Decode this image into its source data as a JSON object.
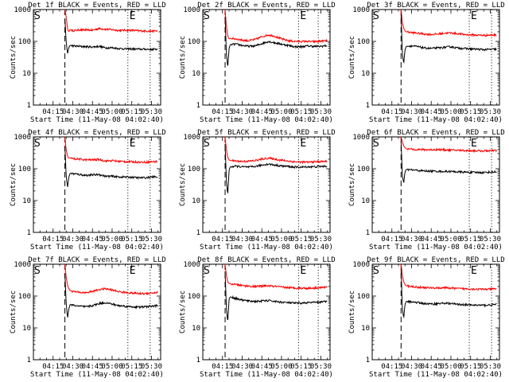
{
  "figure": {
    "shared": {
      "xlabel": "Start Time (11-May-08 04:02:40)",
      "ylabel": "Counts/sec",
      "xticks": [
        "04:15",
        "04:30",
        "04:45",
        "05:00",
        "05:15",
        "05:30"
      ],
      "yticks": [
        "1",
        "10",
        "100",
        "1000"
      ],
      "start_marker": "S",
      "end_marker": "E",
      "colors": {
        "events": "#000000",
        "lld": "#ff0000"
      }
    }
  },
  "chart_data": [
    {
      "type": "line",
      "title": "Det 1f BLACK = Events, RED = LLD",
      "xlabel": "Start Time (11-May-08 04:02:40)",
      "ylabel": "Counts/sec",
      "xlim": [
        0,
        97
      ],
      "ylim": [
        1,
        1000
      ],
      "yscale": "log",
      "dashed_line_x": 24,
      "dotted_lines_x": [
        72,
        89
      ],
      "series": [
        {
          "name": "Events",
          "color": "#000000",
          "x": [
            24,
            25,
            26,
            27,
            28,
            30,
            35,
            40,
            45,
            50,
            55,
            60,
            65,
            70,
            75,
            80,
            85,
            90,
            95
          ],
          "y": [
            500,
            100,
            40,
            65,
            75,
            72,
            70,
            68,
            67,
            70,
            63,
            63,
            60,
            58,
            58,
            57,
            57,
            56,
            57
          ]
        },
        {
          "name": "LLD",
          "color": "#ff0000",
          "x": [
            24,
            25,
            26,
            27,
            28,
            30,
            35,
            40,
            45,
            50,
            55,
            60,
            65,
            70,
            75,
            80,
            85,
            90,
            95
          ],
          "y": [
            1000,
            600,
            250,
            200,
            240,
            215,
            230,
            228,
            225,
            255,
            240,
            235,
            220,
            225,
            222,
            215,
            212,
            210,
            215
          ]
        }
      ]
    },
    {
      "type": "line",
      "title": "Det 2f BLACK = Events, RED = LLD",
      "xlabel": "Start Time (11-May-08 04:02:40)",
      "ylabel": "Counts/sec",
      "xlim": [
        0,
        97
      ],
      "ylim": [
        1,
        1000
      ],
      "yscale": "log",
      "dashed_line_x": 17,
      "dotted_lines_x": [
        73,
        88
      ],
      "series": [
        {
          "name": "Events",
          "color": "#000000",
          "x": [
            17,
            18,
            19,
            20,
            21,
            25,
            30,
            35,
            40,
            45,
            50,
            55,
            60,
            65,
            70,
            75,
            80,
            85,
            90,
            95
          ],
          "y": [
            600,
            40,
            15,
            60,
            80,
            82,
            75,
            70,
            72,
            85,
            100,
            90,
            82,
            75,
            68,
            68,
            72,
            70,
            70,
            74
          ]
        },
        {
          "name": "LLD",
          "color": "#ff0000",
          "x": [
            17,
            18,
            19,
            20,
            21,
            25,
            30,
            35,
            40,
            45,
            50,
            55,
            60,
            65,
            70,
            75,
            80,
            85,
            90,
            95
          ],
          "y": [
            1000,
            300,
            150,
            120,
            125,
            120,
            110,
            105,
            115,
            140,
            160,
            145,
            120,
            105,
            100,
            100,
            100,
            98,
            102,
            105
          ]
        }
      ]
    },
    {
      "type": "line",
      "title": "Det 3f BLACK = Events, RED = LLD",
      "xlabel": "Start Time (11-May-08 04:02:40)",
      "ylabel": "Counts/sec",
      "xlim": [
        0,
        97
      ],
      "ylim": [
        1,
        1000
      ],
      "yscale": "log",
      "dashed_line_x": 22,
      "dotted_lines_x": [
        74,
        91
      ],
      "series": [
        {
          "name": "Events",
          "color": "#000000",
          "x": [
            22,
            23,
            24,
            25,
            26,
            30,
            35,
            40,
            45,
            50,
            55,
            60,
            65,
            70,
            75,
            80,
            85,
            90,
            95
          ],
          "y": [
            700,
            40,
            20,
            55,
            70,
            72,
            68,
            62,
            60,
            62,
            65,
            68,
            62,
            60,
            58,
            57,
            55,
            56,
            57
          ]
        },
        {
          "name": "LLD",
          "color": "#ff0000",
          "x": [
            22,
            23,
            24,
            25,
            26,
            30,
            35,
            40,
            45,
            50,
            55,
            60,
            65,
            70,
            75,
            80,
            85,
            90,
            95
          ],
          "y": [
            1000,
            400,
            260,
            215,
            200,
            190,
            180,
            170,
            165,
            170,
            180,
            185,
            175,
            165,
            160,
            158,
            155,
            158,
            160
          ]
        }
      ]
    },
    {
      "type": "line",
      "title": "Det 4f BLACK = Events, RED = LLD",
      "xlabel": "Start Time (11-May-08 04:02:40)",
      "ylabel": "Counts/sec",
      "xlim": [
        0,
        97
      ],
      "ylim": [
        1,
        1000
      ],
      "yscale": "log",
      "dashed_line_x": 24,
      "dotted_lines_x": [
        72,
        89
      ],
      "series": [
        {
          "name": "Events",
          "color": "#000000",
          "x": [
            24,
            25,
            26,
            27,
            28,
            30,
            35,
            40,
            45,
            50,
            55,
            60,
            65,
            70,
            75,
            80,
            85,
            90,
            95
          ],
          "y": [
            500,
            60,
            25,
            55,
            72,
            70,
            66,
            62,
            64,
            66,
            58,
            58,
            55,
            55,
            54,
            52,
            52,
            55,
            56
          ]
        },
        {
          "name": "LLD",
          "color": "#ff0000",
          "x": [
            24,
            25,
            26,
            27,
            28,
            30,
            35,
            40,
            45,
            50,
            55,
            60,
            65,
            70,
            75,
            80,
            85,
            90,
            95
          ],
          "y": [
            1000,
            400,
            250,
            215,
            220,
            205,
            200,
            190,
            190,
            195,
            175,
            180,
            170,
            168,
            165,
            162,
            160,
            165,
            168
          ]
        }
      ]
    },
    {
      "type": "line",
      "title": "Det 5f BLACK = Events, RED = LLD",
      "xlabel": "Start Time (11-May-08 04:02:40)",
      "ylabel": "Counts/sec",
      "xlim": [
        0,
        97
      ],
      "ylim": [
        1,
        1000
      ],
      "yscale": "log",
      "dashed_line_x": 17,
      "dotted_lines_x": [
        73,
        88
      ],
      "series": [
        {
          "name": "Events",
          "color": "#000000",
          "x": [
            17,
            18,
            19,
            20,
            21,
            25,
            30,
            35,
            40,
            45,
            50,
            55,
            60,
            65,
            70,
            75,
            80,
            85,
            90,
            95
          ],
          "y": [
            600,
            40,
            15,
            90,
            115,
            120,
            115,
            112,
            118,
            130,
            140,
            130,
            122,
            118,
            112,
            112,
            115,
            115,
            118,
            120
          ]
        },
        {
          "name": "LLD",
          "color": "#ff0000",
          "x": [
            17,
            18,
            19,
            20,
            21,
            25,
            30,
            35,
            40,
            45,
            50,
            55,
            60,
            65,
            70,
            75,
            80,
            85,
            90,
            95
          ],
          "y": [
            1000,
            400,
            230,
            190,
            180,
            175,
            170,
            172,
            180,
            200,
            215,
            200,
            185,
            175,
            165,
            162,
            160,
            165,
            168,
            170
          ]
        }
      ]
    },
    {
      "type": "line",
      "title": "Det 6f BLACK = Events, RED = LLD",
      "xlabel": "Start Time (11-May-08 04:02:40)",
      "ylabel": "Counts/sec",
      "xlim": [
        0,
        97
      ],
      "ylim": [
        1,
        1000
      ],
      "yscale": "log",
      "dashed_line_x": 22,
      "dotted_lines_x": [
        74,
        91
      ],
      "series": [
        {
          "name": "Events",
          "color": "#000000",
          "x": [
            22,
            23,
            24,
            25,
            26,
            30,
            35,
            40,
            45,
            50,
            55,
            60,
            65,
            70,
            75,
            80,
            85,
            90,
            95
          ],
          "y": [
            700,
            60,
            35,
            80,
            95,
            92,
            88,
            85,
            84,
            83,
            82,
            82,
            80,
            78,
            77,
            76,
            76,
            78,
            80
          ]
        },
        {
          "name": "LLD",
          "color": "#ff0000",
          "x": [
            22,
            23,
            24,
            25,
            26,
            30,
            35,
            40,
            45,
            50,
            55,
            60,
            65,
            70,
            75,
            80,
            85,
            90,
            95
          ],
          "y": [
            1000,
            700,
            520,
            460,
            420,
            410,
            400,
            395,
            395,
            400,
            390,
            385,
            380,
            375,
            370,
            365,
            362,
            368,
            372
          ]
        }
      ]
    },
    {
      "type": "line",
      "title": "Det 7f BLACK = Events, RED = LLD",
      "xlabel": "Start Time (11-May-08 04:02:40)",
      "ylabel": "Counts/sec",
      "xlim": [
        0,
        97
      ],
      "ylim": [
        1,
        1000
      ],
      "yscale": "log",
      "dashed_line_x": 24,
      "dotted_lines_x": [
        72,
        89
      ],
      "series": [
        {
          "name": "Events",
          "color": "#000000",
          "x": [
            24,
            25,
            26,
            27,
            28,
            30,
            35,
            40,
            45,
            50,
            55,
            60,
            65,
            70,
            75,
            80,
            85,
            90,
            95
          ],
          "y": [
            500,
            60,
            20,
            40,
            55,
            52,
            48,
            46,
            50,
            58,
            62,
            56,
            50,
            48,
            46,
            45,
            46,
            48,
            50
          ]
        },
        {
          "name": "LLD",
          "color": "#ff0000",
          "x": [
            24,
            25,
            26,
            27,
            28,
            30,
            35,
            40,
            45,
            50,
            55,
            60,
            65,
            70,
            75,
            80,
            85,
            90,
            95
          ],
          "y": [
            1000,
            400,
            220,
            170,
            150,
            140,
            130,
            128,
            140,
            160,
            170,
            155,
            138,
            130,
            125,
            120,
            120,
            125,
            130
          ]
        }
      ]
    },
    {
      "type": "line",
      "title": "Det 8f BLACK = Events, RED = LLD",
      "xlabel": "Start Time (11-May-08 04:02:40)",
      "ylabel": "Counts/sec",
      "xlim": [
        0,
        97
      ],
      "ylim": [
        1,
        1000
      ],
      "yscale": "log",
      "dashed_line_x": 17,
      "dotted_lines_x": [
        73,
        88
      ],
      "series": [
        {
          "name": "Events",
          "color": "#000000",
          "x": [
            17,
            18,
            19,
            20,
            21,
            25,
            30,
            35,
            40,
            45,
            50,
            55,
            60,
            65,
            70,
            75,
            80,
            85,
            90,
            95
          ],
          "y": [
            600,
            40,
            15,
            80,
            95,
            85,
            75,
            70,
            68,
            70,
            72,
            68,
            64,
            62,
            60,
            60,
            62,
            63,
            65,
            68
          ]
        },
        {
          "name": "LLD",
          "color": "#ff0000",
          "x": [
            17,
            18,
            19,
            20,
            21,
            25,
            30,
            35,
            40,
            45,
            50,
            55,
            60,
            65,
            70,
            75,
            80,
            85,
            90,
            95
          ],
          "y": [
            1000,
            450,
            280,
            250,
            240,
            230,
            215,
            205,
            200,
            205,
            210,
            200,
            190,
            185,
            180,
            178,
            176,
            180,
            185,
            190
          ]
        }
      ]
    },
    {
      "type": "line",
      "title": "Det 9f BLACK = Events, RED = LLD",
      "xlabel": "Start Time (11-May-08 04:02:40)",
      "ylabel": "Counts/sec",
      "xlim": [
        0,
        97
      ],
      "ylim": [
        1,
        1000
      ],
      "yscale": "log",
      "dashed_line_x": 22,
      "dotted_lines_x": [
        74,
        91
      ],
      "series": [
        {
          "name": "Events",
          "color": "#000000",
          "x": [
            22,
            23,
            24,
            25,
            26,
            30,
            35,
            40,
            45,
            50,
            55,
            60,
            65,
            70,
            75,
            80,
            85,
            90,
            95
          ],
          "y": [
            700,
            40,
            20,
            55,
            68,
            66,
            62,
            58,
            56,
            58,
            60,
            58,
            55,
            54,
            52,
            52,
            51,
            53,
            55
          ]
        },
        {
          "name": "LLD",
          "color": "#ff0000",
          "x": [
            22,
            23,
            24,
            25,
            26,
            30,
            35,
            40,
            45,
            50,
            55,
            60,
            65,
            70,
            75,
            80,
            85,
            90,
            95
          ],
          "y": [
            1000,
            450,
            280,
            230,
            210,
            200,
            190,
            185,
            180,
            180,
            182,
            178,
            172,
            170,
            168,
            165,
            163,
            165,
            168
          ]
        }
      ]
    }
  ]
}
